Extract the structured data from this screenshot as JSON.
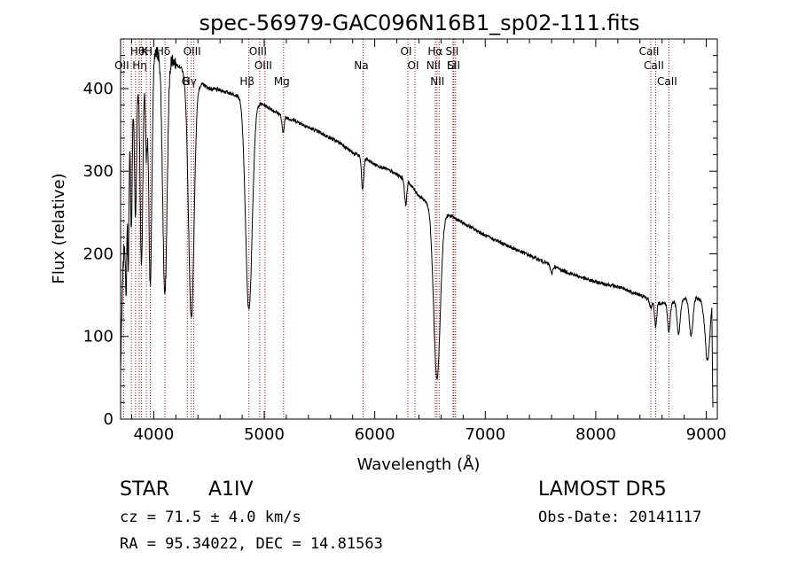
{
  "chart_data": {
    "type": "line",
    "title": "spec-56979-GAC096N16B1_sp02-111.fits",
    "xlabel": "Wavelength (Å)",
    "ylabel": "Flux (relative)",
    "xlim": [
      3700,
      9100
    ],
    "ylim": [
      0,
      460
    ],
    "x_ticks": [
      4000,
      5000,
      6000,
      7000,
      8000,
      9000
    ],
    "y_ticks": [
      0,
      100,
      200,
      300,
      400
    ],
    "grid": false,
    "series": [
      {
        "continuum": [
          [
            3700,
            60
          ],
          [
            3720,
            175
          ],
          [
            3740,
            230
          ],
          [
            3760,
            300
          ],
          [
            3780,
            340
          ],
          [
            3800,
            375
          ],
          [
            3830,
            400
          ],
          [
            3860,
            410
          ],
          [
            3900,
            420
          ],
          [
            3950,
            430
          ],
          [
            4000,
            440
          ],
          [
            4050,
            445
          ],
          [
            4100,
            440
          ],
          [
            4150,
            440
          ],
          [
            4200,
            430
          ],
          [
            4250,
            425
          ],
          [
            4300,
            415
          ],
          [
            4350,
            410
          ],
          [
            4400,
            405
          ],
          [
            4450,
            405
          ],
          [
            4500,
            400
          ],
          [
            4600,
            398
          ],
          [
            4700,
            394
          ],
          [
            4800,
            390
          ],
          [
            4900,
            385
          ],
          [
            5000,
            380
          ],
          [
            5100,
            372
          ],
          [
            5200,
            365
          ],
          [
            5300,
            360
          ],
          [
            5400,
            353
          ],
          [
            5500,
            347
          ],
          [
            5600,
            340
          ],
          [
            5700,
            333
          ],
          [
            5800,
            322
          ],
          [
            5900,
            317
          ],
          [
            6000,
            308
          ],
          [
            6100,
            303
          ],
          [
            6200,
            296
          ],
          [
            6300,
            288
          ],
          [
            6400,
            270
          ],
          [
            6500,
            260
          ],
          [
            6600,
            250
          ],
          [
            6700,
            245
          ],
          [
            6800,
            237
          ],
          [
            6900,
            230
          ],
          [
            7000,
            222
          ],
          [
            7100,
            216
          ],
          [
            7200,
            210
          ],
          [
            7300,
            204
          ],
          [
            7400,
            198
          ],
          [
            7500,
            192
          ],
          [
            7600,
            186
          ],
          [
            7700,
            180
          ],
          [
            7800,
            175
          ],
          [
            7900,
            170
          ],
          [
            8000,
            166
          ],
          [
            8100,
            163
          ],
          [
            8200,
            160
          ],
          [
            8300,
            155
          ],
          [
            8400,
            150
          ],
          [
            8500,
            144
          ],
          [
            8600,
            140
          ],
          [
            8700,
            142
          ],
          [
            8800,
            145
          ],
          [
            8900,
            147
          ],
          [
            8950,
            144
          ],
          [
            9000,
            115
          ],
          [
            9050,
            140
          ],
          [
            9060,
            15
          ]
        ],
        "absorption_lines": [
          [
            3750,
            120,
            6
          ],
          [
            3770,
            135,
            6
          ],
          [
            3798,
            140,
            7
          ],
          [
            3835,
            160,
            9
          ],
          [
            3889,
            230,
            12
          ],
          [
            3933,
            100,
            8
          ],
          [
            3969,
            270,
            14
          ],
          [
            4101,
            290,
            20
          ],
          [
            4340,
            290,
            25
          ],
          [
            4861,
            255,
            30
          ],
          [
            5170,
            20,
            10
          ],
          [
            5890,
            40,
            10
          ],
          [
            6280,
            30,
            10
          ],
          [
            6563,
            205,
            30
          ],
          [
            7600,
            10,
            10
          ],
          [
            8498,
            10,
            10
          ],
          [
            8542,
            30,
            10
          ],
          [
            8662,
            35,
            12
          ],
          [
            8750,
            40,
            14
          ],
          [
            8863,
            45,
            16
          ],
          [
            9014,
            50,
            18
          ]
        ]
      }
    ],
    "line_markers": [
      {
        "wavelength": 3727,
        "labels": [
          "OII"
        ]
      },
      {
        "wavelength": 3798,
        "labels": []
      },
      {
        "wavelength": 3835,
        "labels": []
      },
      {
        "wavelength": 3869,
        "labels": [
          "Hθ"
        ]
      },
      {
        "wavelength": 3889,
        "labels": [
          "Hη"
        ]
      },
      {
        "wavelength": 3933,
        "labels": [
          "K"
        ]
      },
      {
        "wavelength": 3969,
        "labels": [
          "H"
        ]
      },
      {
        "wavelength": 4102,
        "labels": [
          "Hδ"
        ]
      },
      {
        "wavelength": 4304,
        "labels": [
          "G"
        ]
      },
      {
        "wavelength": 4340,
        "labels": [
          "Hγ"
        ]
      },
      {
        "wavelength": 4363,
        "labels": [
          "OIII"
        ]
      },
      {
        "wavelength": 4861,
        "labels": [
          "Hβ"
        ]
      },
      {
        "wavelength": 4959,
        "labels": [
          "OIII"
        ]
      },
      {
        "wavelength": 5007,
        "labels": [
          "OIII"
        ]
      },
      {
        "wavelength": 5175,
        "labels": [
          "Mg"
        ]
      },
      {
        "wavelength": 5894,
        "labels": [
          "Na"
        ]
      },
      {
        "wavelength": 6300,
        "labels": [
          "OI"
        ]
      },
      {
        "wavelength": 6364,
        "labels": [
          "OI"
        ]
      },
      {
        "wavelength": 6548,
        "labels": [
          "NII"
        ]
      },
      {
        "wavelength": 6563,
        "labels": [
          "Hα"
        ]
      },
      {
        "wavelength": 6583,
        "labels": [
          "NII"
        ]
      },
      {
        "wavelength": 6708,
        "labels": [
          "Li"
        ]
      },
      {
        "wavelength": 6716,
        "labels": [
          "SII"
        ]
      },
      {
        "wavelength": 6731,
        "labels": [
          "SII"
        ]
      },
      {
        "wavelength": 8498,
        "labels": [
          "CaII"
        ]
      },
      {
        "wavelength": 8542,
        "labels": [
          "CaII"
        ]
      },
      {
        "wavelength": 8662,
        "labels": [
          "CaII"
        ]
      }
    ]
  },
  "info": {
    "class_label": "STAR",
    "subclass": "A1IV",
    "survey": "LAMOST  DR5",
    "cz": "cz = 71.5 ± 4.0 km/s",
    "obs_date": "Obs-Date: 20141117",
    "coords": "RA =  95.34022, DEC =  14.81563"
  },
  "colors": {
    "line_marker": "#cc0000",
    "spectrum": "#000000"
  }
}
